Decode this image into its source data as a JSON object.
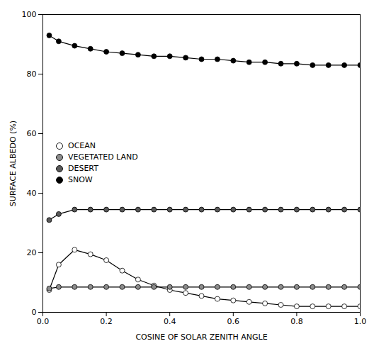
{
  "chart_data": {
    "type": "line",
    "xlabel": "COSINE OF SOLAR ZENITH ANGLE",
    "ylabel": "SURFACE ALBEDO (%)",
    "x": [
      0.02,
      0.05,
      0.1,
      0.15,
      0.2,
      0.25,
      0.3,
      0.35,
      0.4,
      0.45,
      0.5,
      0.55,
      0.6,
      0.65,
      0.7,
      0.75,
      0.8,
      0.85,
      0.9,
      0.95,
      1.0
    ],
    "series": [
      {
        "name": "OCEAN",
        "color": "#ffffff",
        "values": [
          7.5,
          16.0,
          21.0,
          19.5,
          17.5,
          14.0,
          11.0,
          9.0,
          7.5,
          6.5,
          5.5,
          4.5,
          4.0,
          3.5,
          3.0,
          2.5,
          2.0,
          2.0,
          2.0,
          2.0,
          2.0
        ]
      },
      {
        "name": "VEGETATED LAND",
        "color": "#8c8c8c",
        "values": [
          8.0,
          8.5,
          8.5,
          8.5,
          8.5,
          8.5,
          8.5,
          8.5,
          8.5,
          8.5,
          8.5,
          8.5,
          8.5,
          8.5,
          8.5,
          8.5,
          8.5,
          8.5,
          8.5,
          8.5,
          8.5
        ]
      },
      {
        "name": "DESERT",
        "color": "#595959",
        "values": [
          31.0,
          33.0,
          34.5,
          34.5,
          34.5,
          34.5,
          34.5,
          34.5,
          34.5,
          34.5,
          34.5,
          34.5,
          34.5,
          34.5,
          34.5,
          34.5,
          34.5,
          34.5,
          34.5,
          34.5,
          34.5
        ]
      },
      {
        "name": "SNOW",
        "color": "#000000",
        "values": [
          93.0,
          91.0,
          89.5,
          88.5,
          87.5,
          87.0,
          86.5,
          86.0,
          86.0,
          85.5,
          85.0,
          85.0,
          84.5,
          84.0,
          84.0,
          83.5,
          83.5,
          83.0,
          83.0,
          83.0,
          83.0
        ]
      }
    ],
    "xlim": [
      0.0,
      1.0
    ],
    "ylim": [
      0,
      100
    ],
    "xticks": [
      {
        "value": 0.0,
        "label": "0.0"
      },
      0.2,
      0.4,
      0.6,
      0.8,
      {
        "value": 1.0,
        "label": "1.0"
      }
    ],
    "yticks": [
      0,
      20,
      40,
      60,
      80,
      100
    ],
    "marker": "circle",
    "grid": false,
    "legend": "center left"
  }
}
